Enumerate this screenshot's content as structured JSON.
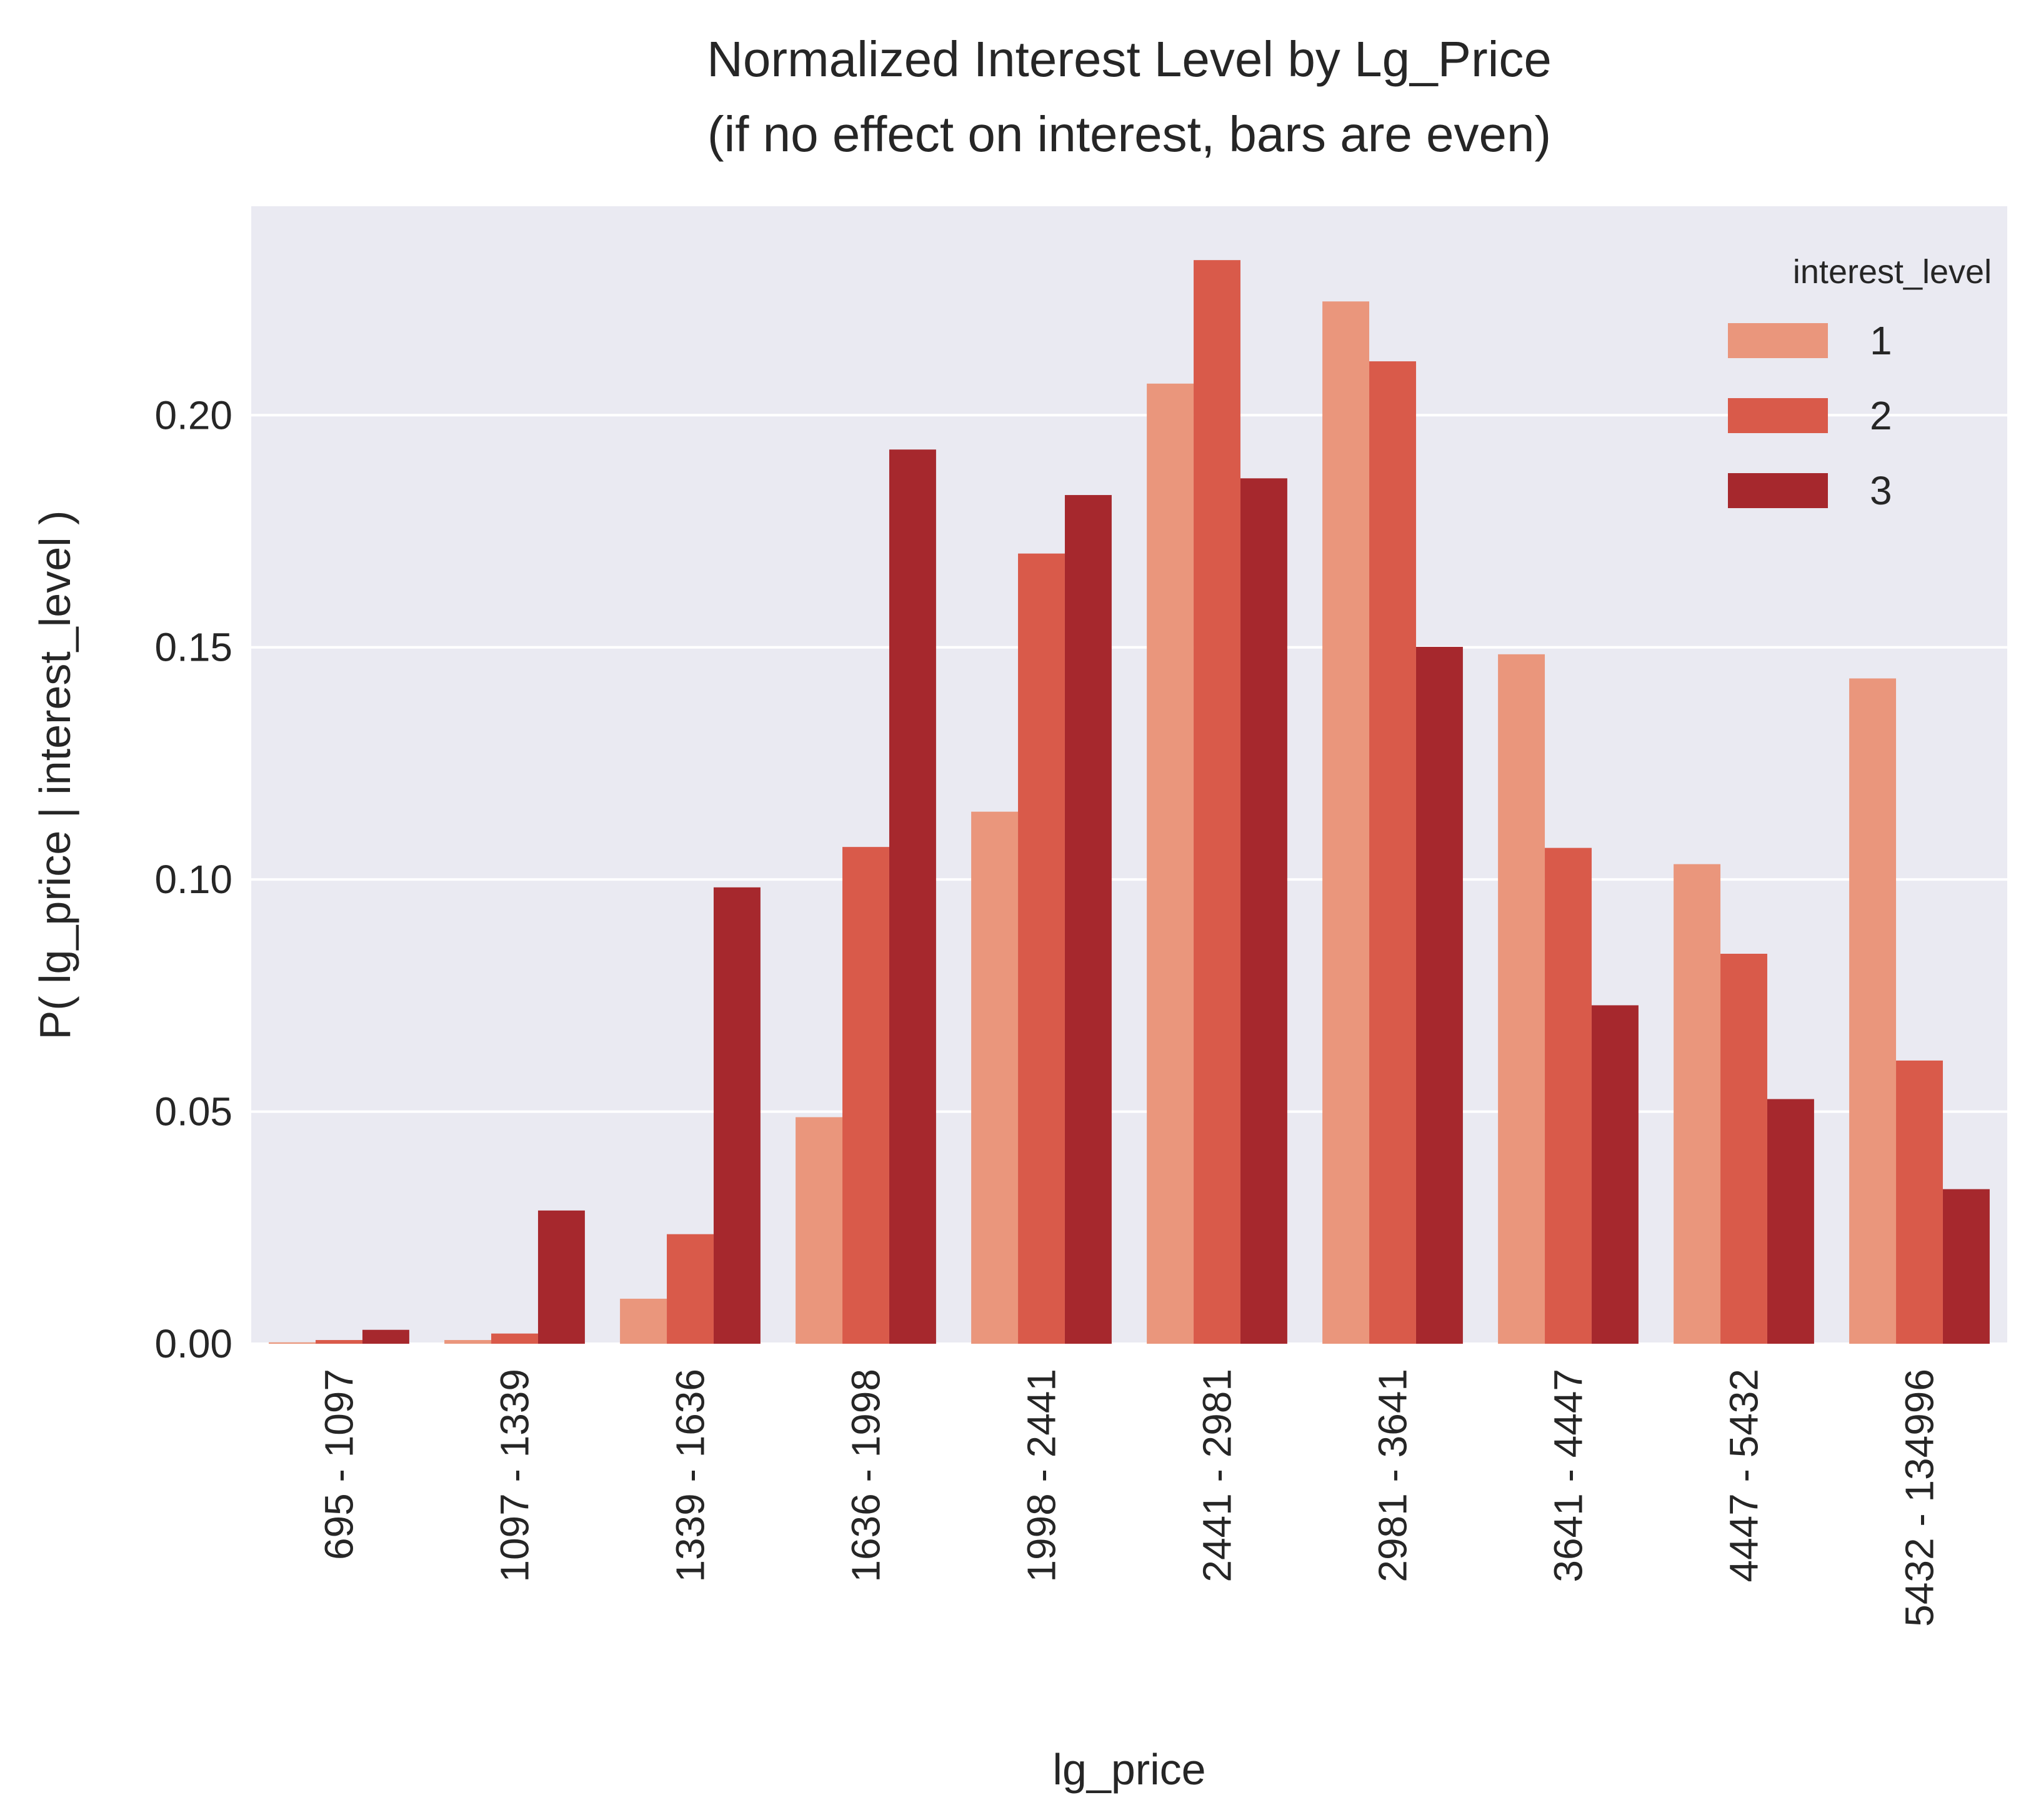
{
  "chart_data": {
    "type": "bar",
    "title": [
      "Normalized Interest Level by Lg_Price",
      "(if no effect on interest, bars are even)"
    ],
    "xlabel": "lg_price",
    "ylabel": "P( lg_price | interest_level )",
    "ylim": [
      0,
      0.245
    ],
    "yticks": [
      "0.00",
      "0.05",
      "0.10",
      "0.15",
      "0.20"
    ],
    "grid": true,
    "legend_position": "top-right",
    "legend_title": "interest_level",
    "categories": [
      "695 - 1097",
      "1097 - 1339",
      "1339 - 1636",
      "1636 - 1998",
      "1998 - 2441",
      "2441 - 2981",
      "2981 - 3641",
      "3641 - 4447",
      "4447 - 5432",
      "5432 - 134996"
    ],
    "series": [
      {
        "name": "1",
        "color": "#ea967c",
        "values": [
          0.0003,
          0.0008,
          0.0097,
          0.0488,
          0.1146,
          0.2068,
          0.2245,
          0.1485,
          0.1033,
          0.1433
        ]
      },
      {
        "name": "2",
        "color": "#d95a4a",
        "values": [
          0.0008,
          0.0022,
          0.0236,
          0.107,
          0.1702,
          0.2334,
          0.2116,
          0.1068,
          0.084,
          0.061
        ]
      },
      {
        "name": "3",
        "color": "#a6282d",
        "values": [
          0.003,
          0.0287,
          0.0983,
          0.1926,
          0.1828,
          0.1864,
          0.1501,
          0.0729,
          0.0527,
          0.0333
        ]
      }
    ]
  }
}
